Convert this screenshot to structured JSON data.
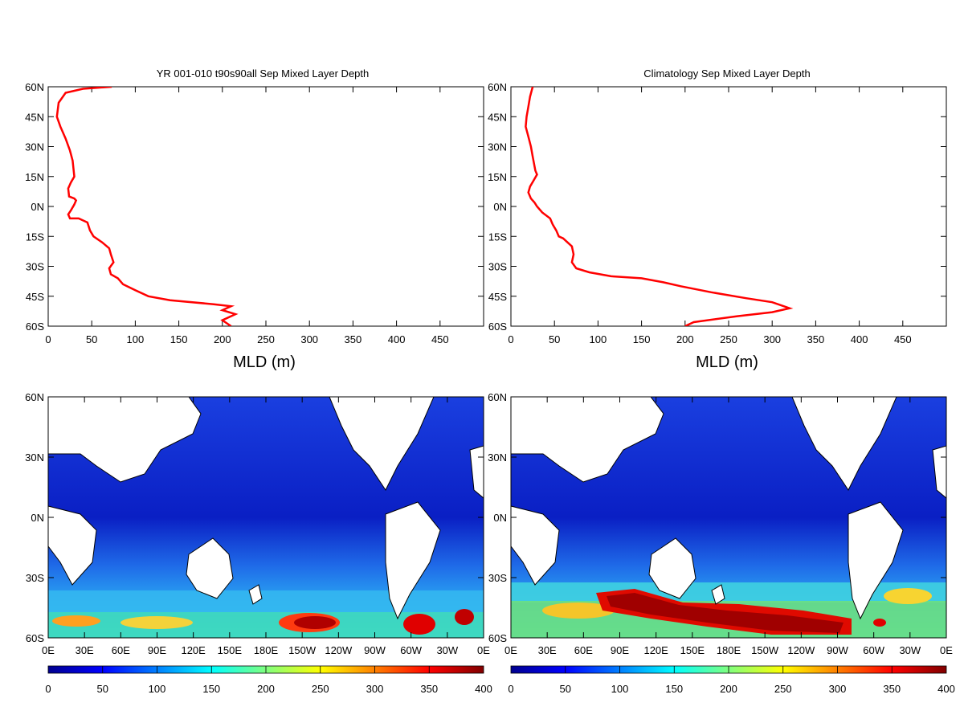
{
  "colors": {
    "profile_line": "#ff0000",
    "frame": "#000000",
    "land": "#ffffff"
  },
  "chart_data": [
    {
      "type": "line",
      "title": "YR 001-010 t90s90all Sep Mixed Layer Depth",
      "xlabel": "MLD (m)",
      "ylabel": "",
      "xlim": [
        0,
        500
      ],
      "ylim": [
        -60,
        60
      ],
      "x_ticks": [
        "0",
        "50",
        "100",
        "150",
        "200",
        "250",
        "300",
        "350",
        "400",
        "450"
      ],
      "y_ticks": [
        "60N",
        "45N",
        "30N",
        "15N",
        "0N",
        "15S",
        "30S",
        "45S",
        "60S"
      ],
      "grid": false,
      "series": [
        {
          "color": "#ff0000",
          "x": [
            73,
            40,
            20,
            12,
            10,
            14,
            20,
            25,
            28,
            30,
            26,
            23,
            24,
            30,
            32,
            30,
            26,
            23,
            25,
            35,
            45,
            48,
            52,
            62,
            70,
            72,
            75,
            70,
            72,
            80,
            86,
            100,
            115,
            140,
            190,
            210,
            200,
            215,
            200,
            210
          ],
          "y": [
            60,
            59,
            57,
            52,
            45,
            40,
            34,
            28,
            23,
            15,
            12,
            9,
            5,
            4,
            3,
            1,
            -2,
            -4,
            -6,
            -6,
            -8,
            -12,
            -15,
            -18,
            -21,
            -24,
            -28,
            -31,
            -34,
            -36,
            -39,
            -42,
            -45,
            -47,
            -49,
            -50,
            -52,
            -54,
            -57,
            -60
          ]
        }
      ]
    },
    {
      "type": "line",
      "title": "Climatology Sep Mixed Layer Depth",
      "xlabel": "MLD (m)",
      "ylabel": "",
      "xlim": [
        0,
        500
      ],
      "ylim": [
        -60,
        60
      ],
      "x_ticks": [
        "0",
        "50",
        "100",
        "150",
        "200",
        "250",
        "300",
        "350",
        "400",
        "450"
      ],
      "y_ticks": [
        "60N",
        "45N",
        "30N",
        "15N",
        "0N",
        "15S",
        "30S",
        "45S",
        "60S"
      ],
      "grid": false,
      "series": [
        {
          "color": "#ff0000",
          "x": [
            25,
            22,
            20,
            18,
            17,
            20,
            23,
            25,
            28,
            30,
            26,
            22,
            20,
            23,
            27,
            30,
            36,
            45,
            48,
            52,
            55,
            60,
            70,
            72,
            70,
            75,
            90,
            115,
            150,
            175,
            195,
            230,
            270,
            300,
            320,
            300,
            260,
            210,
            200
          ],
          "y": [
            60,
            55,
            50,
            45,
            40,
            35,
            30,
            25,
            18,
            16,
            13,
            10,
            7,
            4,
            2,
            0,
            -3,
            -6,
            -9,
            -12,
            -15,
            -16,
            -20,
            -24,
            -28,
            -31,
            -33,
            -35,
            -36,
            -38,
            -40,
            -43,
            -46,
            -48,
            -51,
            -53,
            -55,
            -58,
            -60
          ]
        }
      ]
    },
    {
      "type": "heatmap",
      "title": "",
      "x_ticks": [
        "0E",
        "30E",
        "60E",
        "90E",
        "120E",
        "150E",
        "180E",
        "150W",
        "120W",
        "90W",
        "60W",
        "30W",
        "0E"
      ],
      "y_ticks": [
        "60N",
        "30N",
        "0N",
        "30S",
        "60S"
      ],
      "xlim": [
        0,
        360
      ],
      "ylim": [
        -60,
        60
      ],
      "colorbar": {
        "ticks": [
          "0",
          "50",
          "100",
          "150",
          "200",
          "250",
          "300",
          "350",
          "400"
        ],
        "range": [
          0,
          400
        ]
      }
    },
    {
      "type": "heatmap",
      "title": "",
      "x_ticks": [
        "0E",
        "30E",
        "60E",
        "90E",
        "120E",
        "150E",
        "180E",
        "150W",
        "120W",
        "90W",
        "60W",
        "30W",
        "0E"
      ],
      "y_ticks": [
        "60N",
        "30N",
        "0N",
        "30S",
        "60S"
      ],
      "xlim": [
        0,
        360
      ],
      "ylim": [
        -60,
        60
      ],
      "colorbar": {
        "ticks": [
          "0",
          "50",
          "100",
          "150",
          "200",
          "250",
          "300",
          "350",
          "400"
        ],
        "range": [
          0,
          400
        ]
      }
    }
  ]
}
